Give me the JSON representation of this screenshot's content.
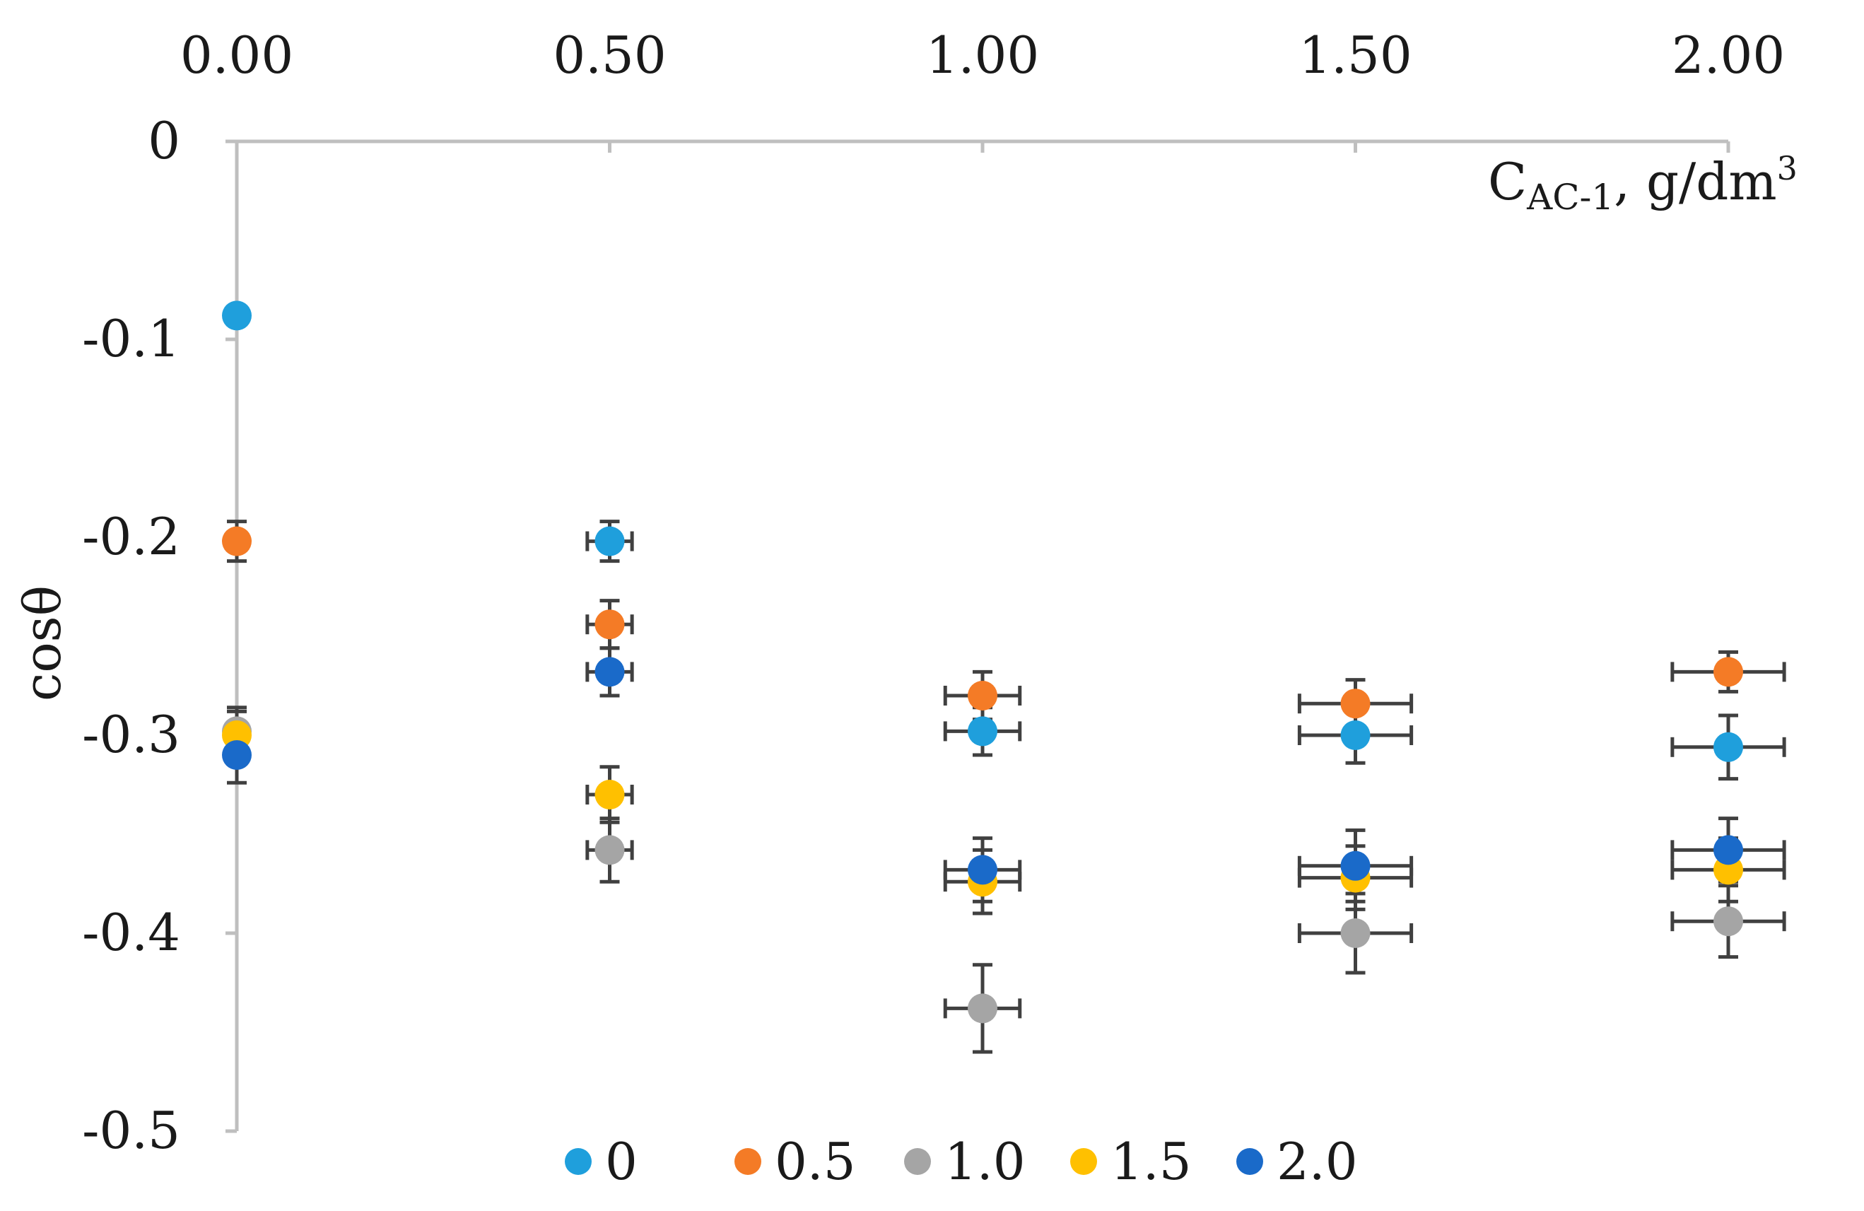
{
  "chart_data": {
    "type": "scatter",
    "title": "",
    "xlabel": {
      "main": "C",
      "sub": "AC-1",
      "rest": ", g/dm",
      "sup": "3"
    },
    "ylabel": "cosθ",
    "xlim": [
      0,
      2
    ],
    "ylim": [
      -0.5,
      0
    ],
    "x_ticks": [
      "0.00",
      "0.50",
      "1.00",
      "1.50",
      "2.00"
    ],
    "x_tick_values": [
      0,
      0.5,
      1.0,
      1.5,
      2.0
    ],
    "y_ticks": [
      "0",
      "-0.1",
      "-0.2",
      "-0.3",
      "-0.4",
      "-0.5"
    ],
    "y_tick_values": [
      0,
      -0.1,
      -0.2,
      -0.3,
      -0.4,
      -0.5
    ],
    "x_axis_position": "top",
    "grid": false,
    "legend_position": "bottom",
    "series": [
      {
        "name": "0",
        "color": "#1f9fdc",
        "x": [
          0,
          0.5,
          1.0,
          1.5,
          2.0
        ],
        "y": [
          -0.088,
          -0.202,
          -0.298,
          -0.3,
          -0.306
        ],
        "yerr": [
          0,
          0.01,
          0.012,
          0.014,
          0.016
        ],
        "xerr": [
          0,
          0.03,
          0.05,
          0.075,
          0.075
        ]
      },
      {
        "name": "0.5",
        "color": "#f47b26",
        "x": [
          0,
          0.5,
          1.0,
          1.5,
          2.0
        ],
        "y": [
          -0.202,
          -0.244,
          -0.28,
          -0.284,
          -0.268
        ],
        "yerr": [
          0.01,
          0.012,
          0.012,
          0.012,
          0.01
        ],
        "xerr": [
          0,
          0.03,
          0.05,
          0.075,
          0.075
        ]
      },
      {
        "name": "1.0",
        "color": "#a5a5a5",
        "x": [
          0,
          0.5,
          1.0,
          1.5,
          2.0
        ],
        "y": [
          -0.298,
          -0.358,
          -0.438,
          -0.4,
          -0.394
        ],
        "yerr": [
          0.012,
          0.016,
          0.022,
          0.02,
          0.018
        ],
        "xerr": [
          0,
          0.03,
          0.05,
          0.075,
          0.075
        ]
      },
      {
        "name": "1.5",
        "color": "#ffc000",
        "x": [
          0,
          0.5,
          1.0,
          1.5,
          2.0
        ],
        "y": [
          -0.3,
          -0.33,
          -0.374,
          -0.372,
          -0.368
        ],
        "yerr": [
          0.012,
          0.014,
          0.016,
          0.016,
          0.016
        ],
        "xerr": [
          0,
          0.03,
          0.05,
          0.075,
          0.075
        ]
      },
      {
        "name": "2.0",
        "color": "#1a6ac9",
        "x": [
          0,
          0.5,
          1.0,
          1.5,
          2.0
        ],
        "y": [
          -0.31,
          -0.268,
          -0.368,
          -0.366,
          -0.358
        ],
        "yerr": [
          0.014,
          0.012,
          0.016,
          0.018,
          0.016
        ],
        "xerr": [
          0,
          0.03,
          0.05,
          0.075,
          0.075
        ]
      }
    ],
    "errorbar_color": "#404040",
    "axis_color": "#bfbfbf"
  }
}
